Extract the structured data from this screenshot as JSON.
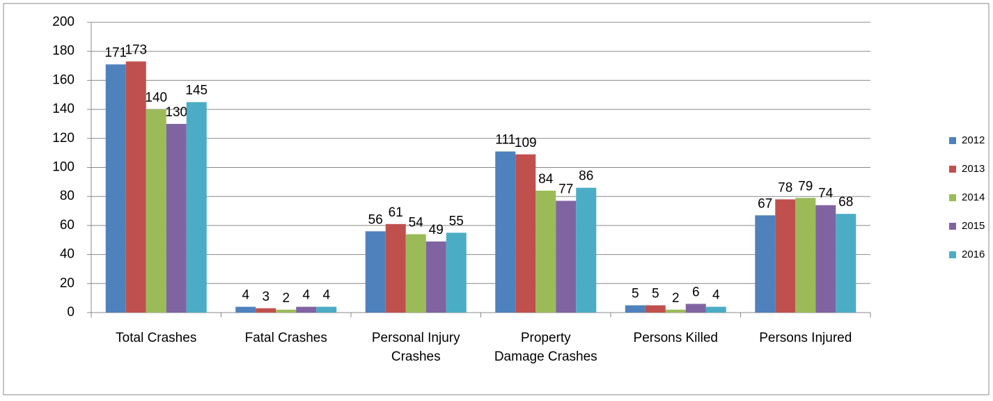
{
  "chart_data": {
    "type": "bar",
    "categories": [
      "Total Crashes",
      "Fatal Crashes",
      "Personal Injury\nCrashes",
      "Property\nDamage Crashes",
      "Persons Killed",
      "Persons Injured"
    ],
    "series": [
      {
        "name": "2012",
        "color": "#4f81bd",
        "values": [
          171,
          4,
          56,
          111,
          5,
          67
        ]
      },
      {
        "name": "2013",
        "color": "#c0504d",
        "values": [
          173,
          3,
          61,
          109,
          5,
          78
        ]
      },
      {
        "name": "2014",
        "color": "#9bbb59",
        "values": [
          140,
          2,
          54,
          84,
          2,
          79
        ]
      },
      {
        "name": "2015",
        "color": "#8064a2",
        "values": [
          130,
          4,
          49,
          77,
          6,
          74
        ]
      },
      {
        "name": "2016",
        "color": "#4bacc6",
        "values": [
          145,
          4,
          55,
          86,
          4,
          68
        ]
      }
    ],
    "ylim": [
      0,
      200
    ],
    "yticks": [
      0,
      20,
      40,
      60,
      80,
      100,
      120,
      140,
      160,
      180,
      200
    ],
    "grid": true,
    "legend": "right"
  }
}
